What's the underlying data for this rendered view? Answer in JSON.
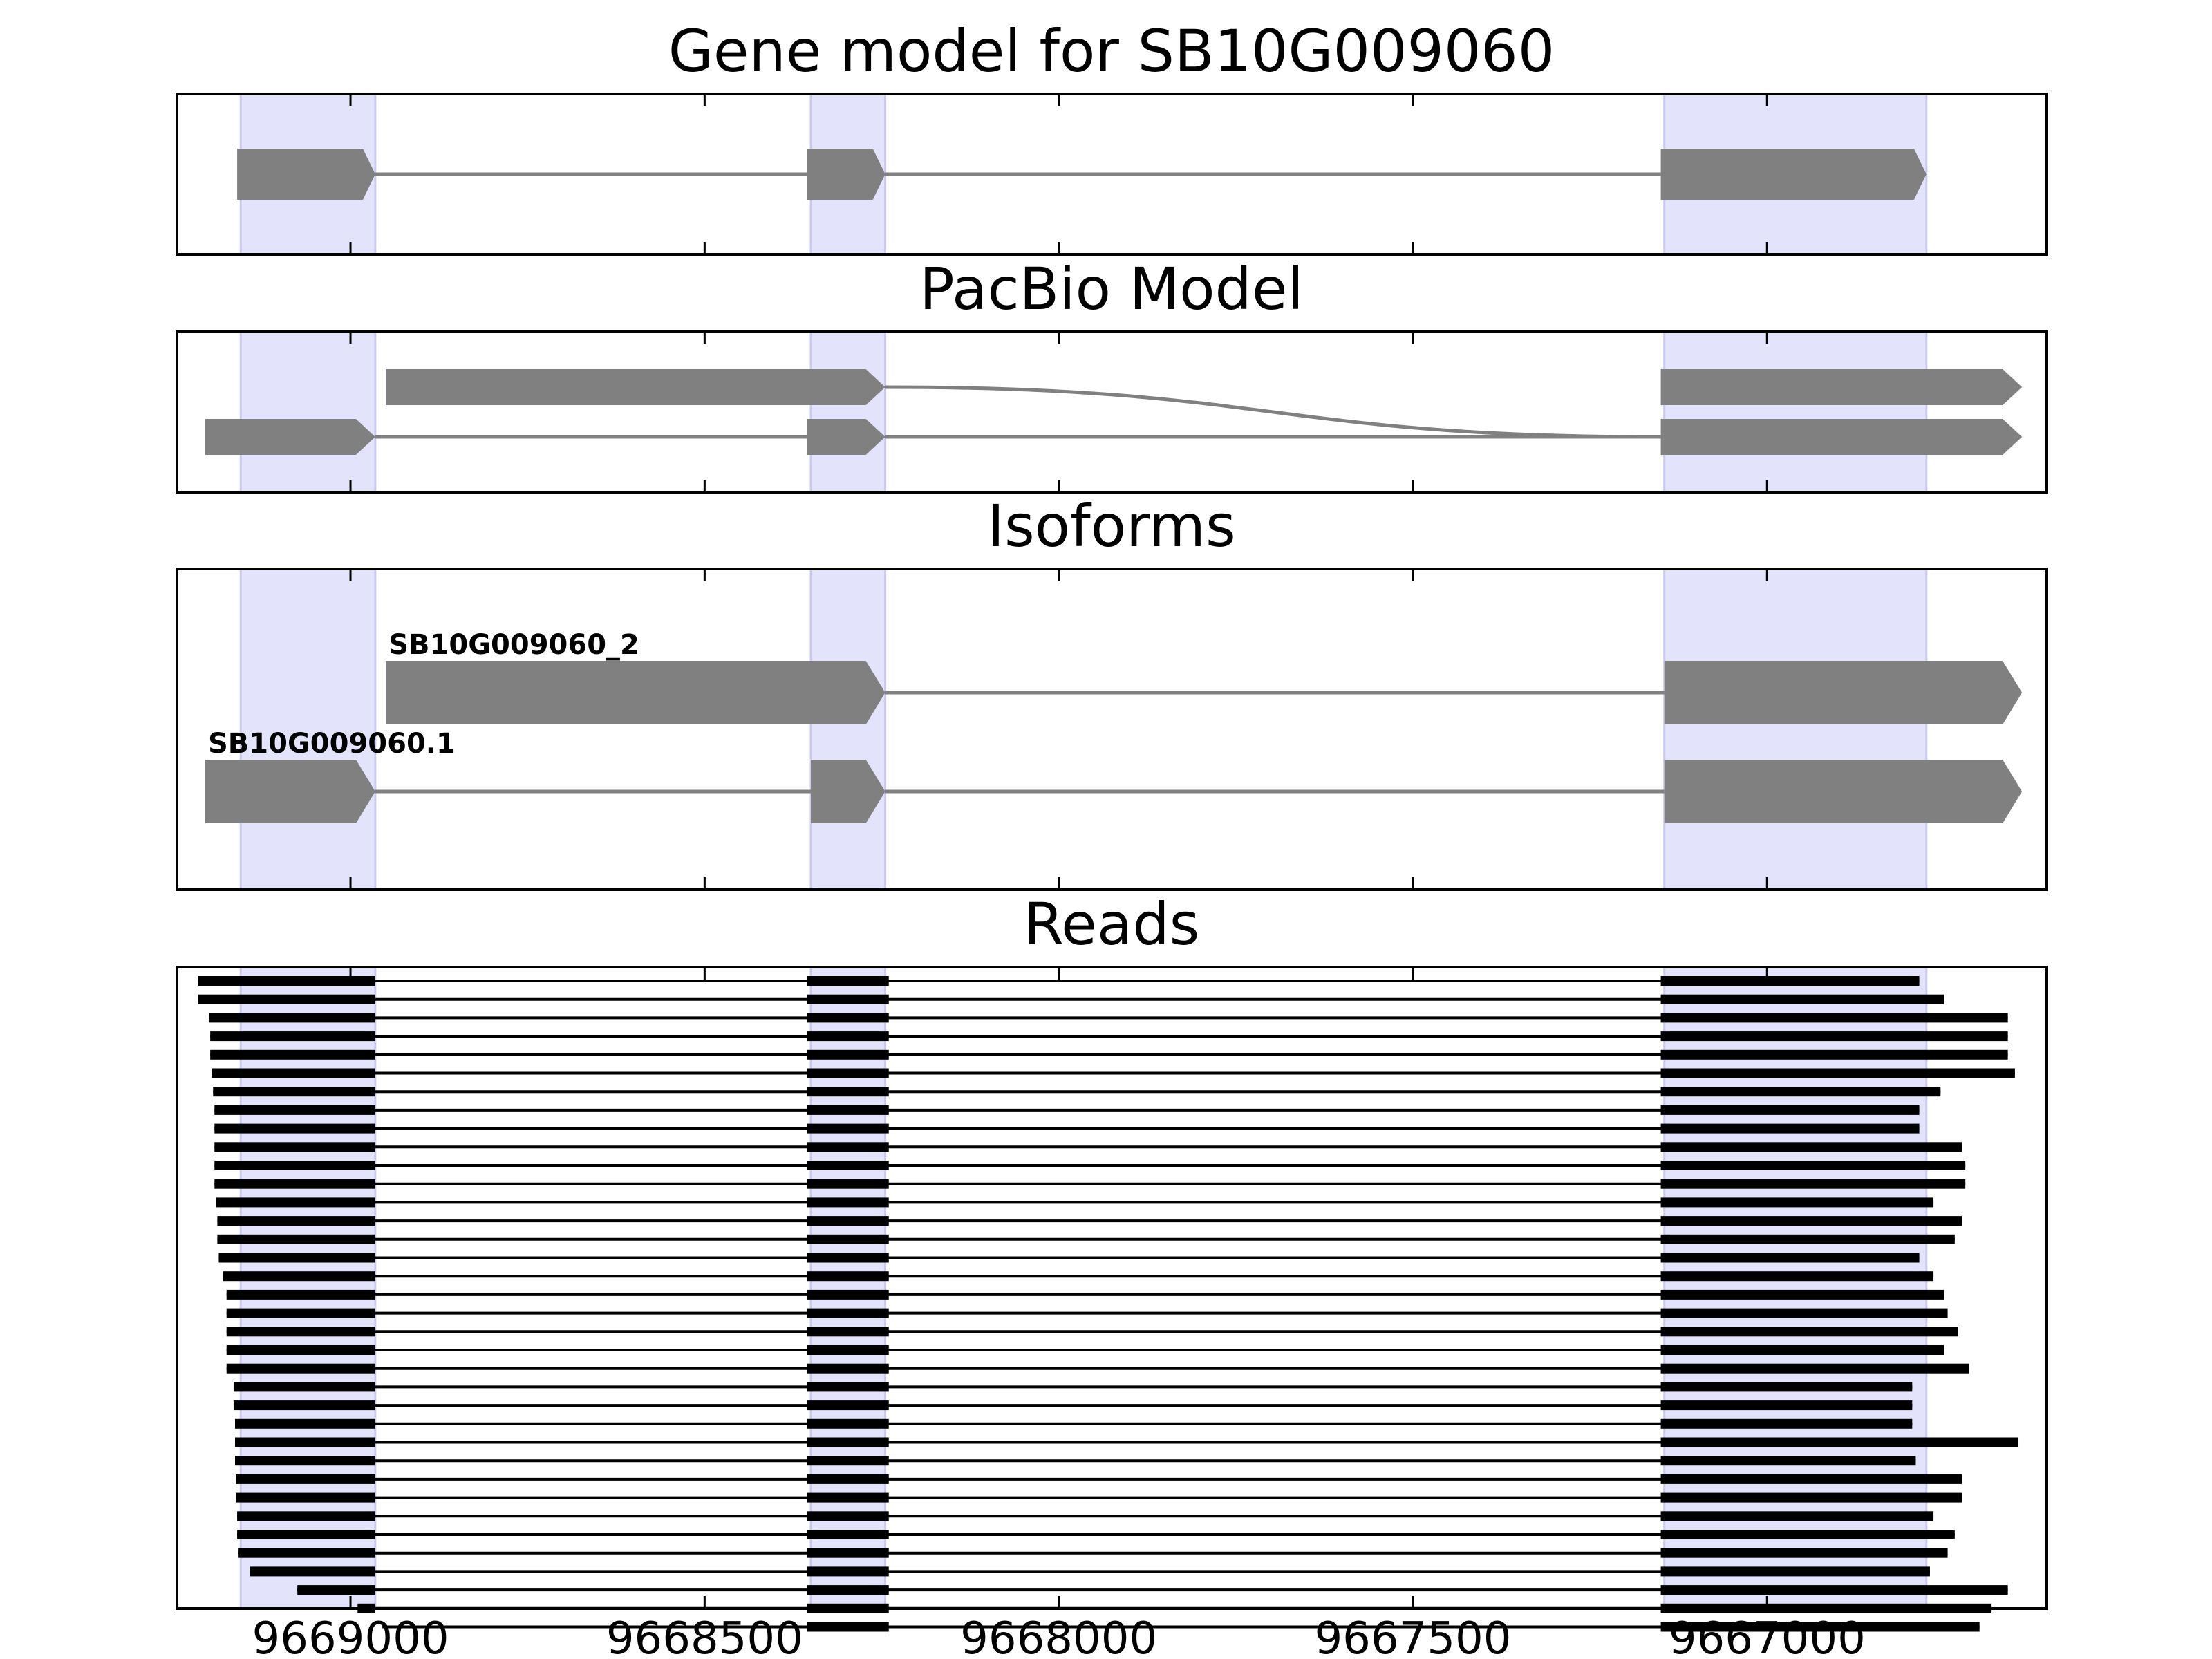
{
  "chart_data": [
    {
      "type": "gene_track",
      "title": "Gene model for SB10G009060",
      "xlim": [
        9669245,
        9666605
      ],
      "x_reversed": true,
      "highlight_regions": [
        [
          9669155,
          9668965
        ],
        [
          9668350,
          9668245
        ],
        [
          9667145,
          9666775
        ]
      ],
      "features": [
        {
          "name": "",
          "row": 0,
          "exons": [
            [
              9669160,
              9668965
            ],
            [
              9668355,
              9668245
            ],
            [
              9667150,
              9666775
            ]
          ]
        }
      ]
    },
    {
      "type": "gene_track",
      "title": "PacBio Model",
      "xlim": [
        9669245,
        9666605
      ],
      "x_reversed": true,
      "highlight_regions": [
        [
          9669155,
          9668965
        ],
        [
          9668350,
          9668245
        ],
        [
          9667145,
          9666775
        ]
      ],
      "features": [
        {
          "name": "",
          "row": 1,
          "exons": [
            [
              9668950,
              9668245
            ],
            [
              9667150,
              9666640
            ]
          ],
          "curved_intron": true
        },
        {
          "name": "",
          "row": 0,
          "exons": [
            [
              9669205,
              9668965
            ],
            [
              9668355,
              9668245
            ],
            [
              9667150,
              9666640
            ]
          ]
        }
      ]
    },
    {
      "type": "gene_track",
      "title": "Isoforms",
      "xlim": [
        9669245,
        9666605
      ],
      "x_reversed": true,
      "highlight_regions": [
        [
          9669155,
          9668965
        ],
        [
          9668350,
          9668245
        ],
        [
          9667145,
          9666775
        ]
      ],
      "features": [
        {
          "name": "SB10G009060_2",
          "row": 1,
          "exons": [
            [
              9668950,
              9668245
            ],
            [
              9667145,
              9666640
            ]
          ]
        },
        {
          "name": "SB10G009060.1",
          "row": 0,
          "exons": [
            [
              9669205,
              9668965
            ],
            [
              9668350,
              9668245
            ],
            [
              9667145,
              9666640
            ]
          ]
        }
      ]
    },
    {
      "type": "read_alignments",
      "title": "Reads",
      "xlim": [
        9669245,
        9666605
      ],
      "x_reversed": true,
      "xticks": [
        9669000,
        9668500,
        9668000,
        9667500,
        9667000
      ],
      "xtick_labels": [
        "9669000",
        "9668500",
        "9668000",
        "9667500",
        "9667000"
      ],
      "highlight_regions": [
        [
          9669155,
          9668965
        ],
        [
          9668350,
          9668245
        ],
        [
          9667145,
          9666775
        ]
      ],
      "reads": [
        [
          9669215,
          9666785
        ],
        [
          9669215,
          9666750
        ],
        [
          9669200,
          9666660
        ],
        [
          9669198,
          9666660
        ],
        [
          9669198,
          9666660
        ],
        [
          9669196,
          9666650
        ],
        [
          9669194,
          9666755
        ],
        [
          9669192,
          9666785
        ],
        [
          9669192,
          9666785
        ],
        [
          9669192,
          9666725
        ],
        [
          9669192,
          9666720
        ],
        [
          9669192,
          9666720
        ],
        [
          9669190,
          9666765
        ],
        [
          9669188,
          9666725
        ],
        [
          9669188,
          9666735
        ],
        [
          9669186,
          9666785
        ],
        [
          9669180,
          9666765
        ],
        [
          9669175,
          9666750
        ],
        [
          9669175,
          9666745
        ],
        [
          9669175,
          9666730
        ],
        [
          9669175,
          9666750
        ],
        [
          9669175,
          9666715
        ],
        [
          9669165,
          9666795
        ],
        [
          9669165,
          9666795
        ],
        [
          9669163,
          9666795
        ],
        [
          9669163,
          9666645
        ],
        [
          9669163,
          9666790
        ],
        [
          9669162,
          9666725
        ],
        [
          9669162,
          9666725
        ],
        [
          9669160,
          9666765
        ],
        [
          9669160,
          9666735
        ],
        [
          9669158,
          9666745
        ],
        [
          9669142,
          9666770
        ],
        [
          9669075,
          9666660
        ],
        [
          9668990,
          9666683
        ],
        [
          9668955,
          9666700
        ]
      ]
    }
  ]
}
